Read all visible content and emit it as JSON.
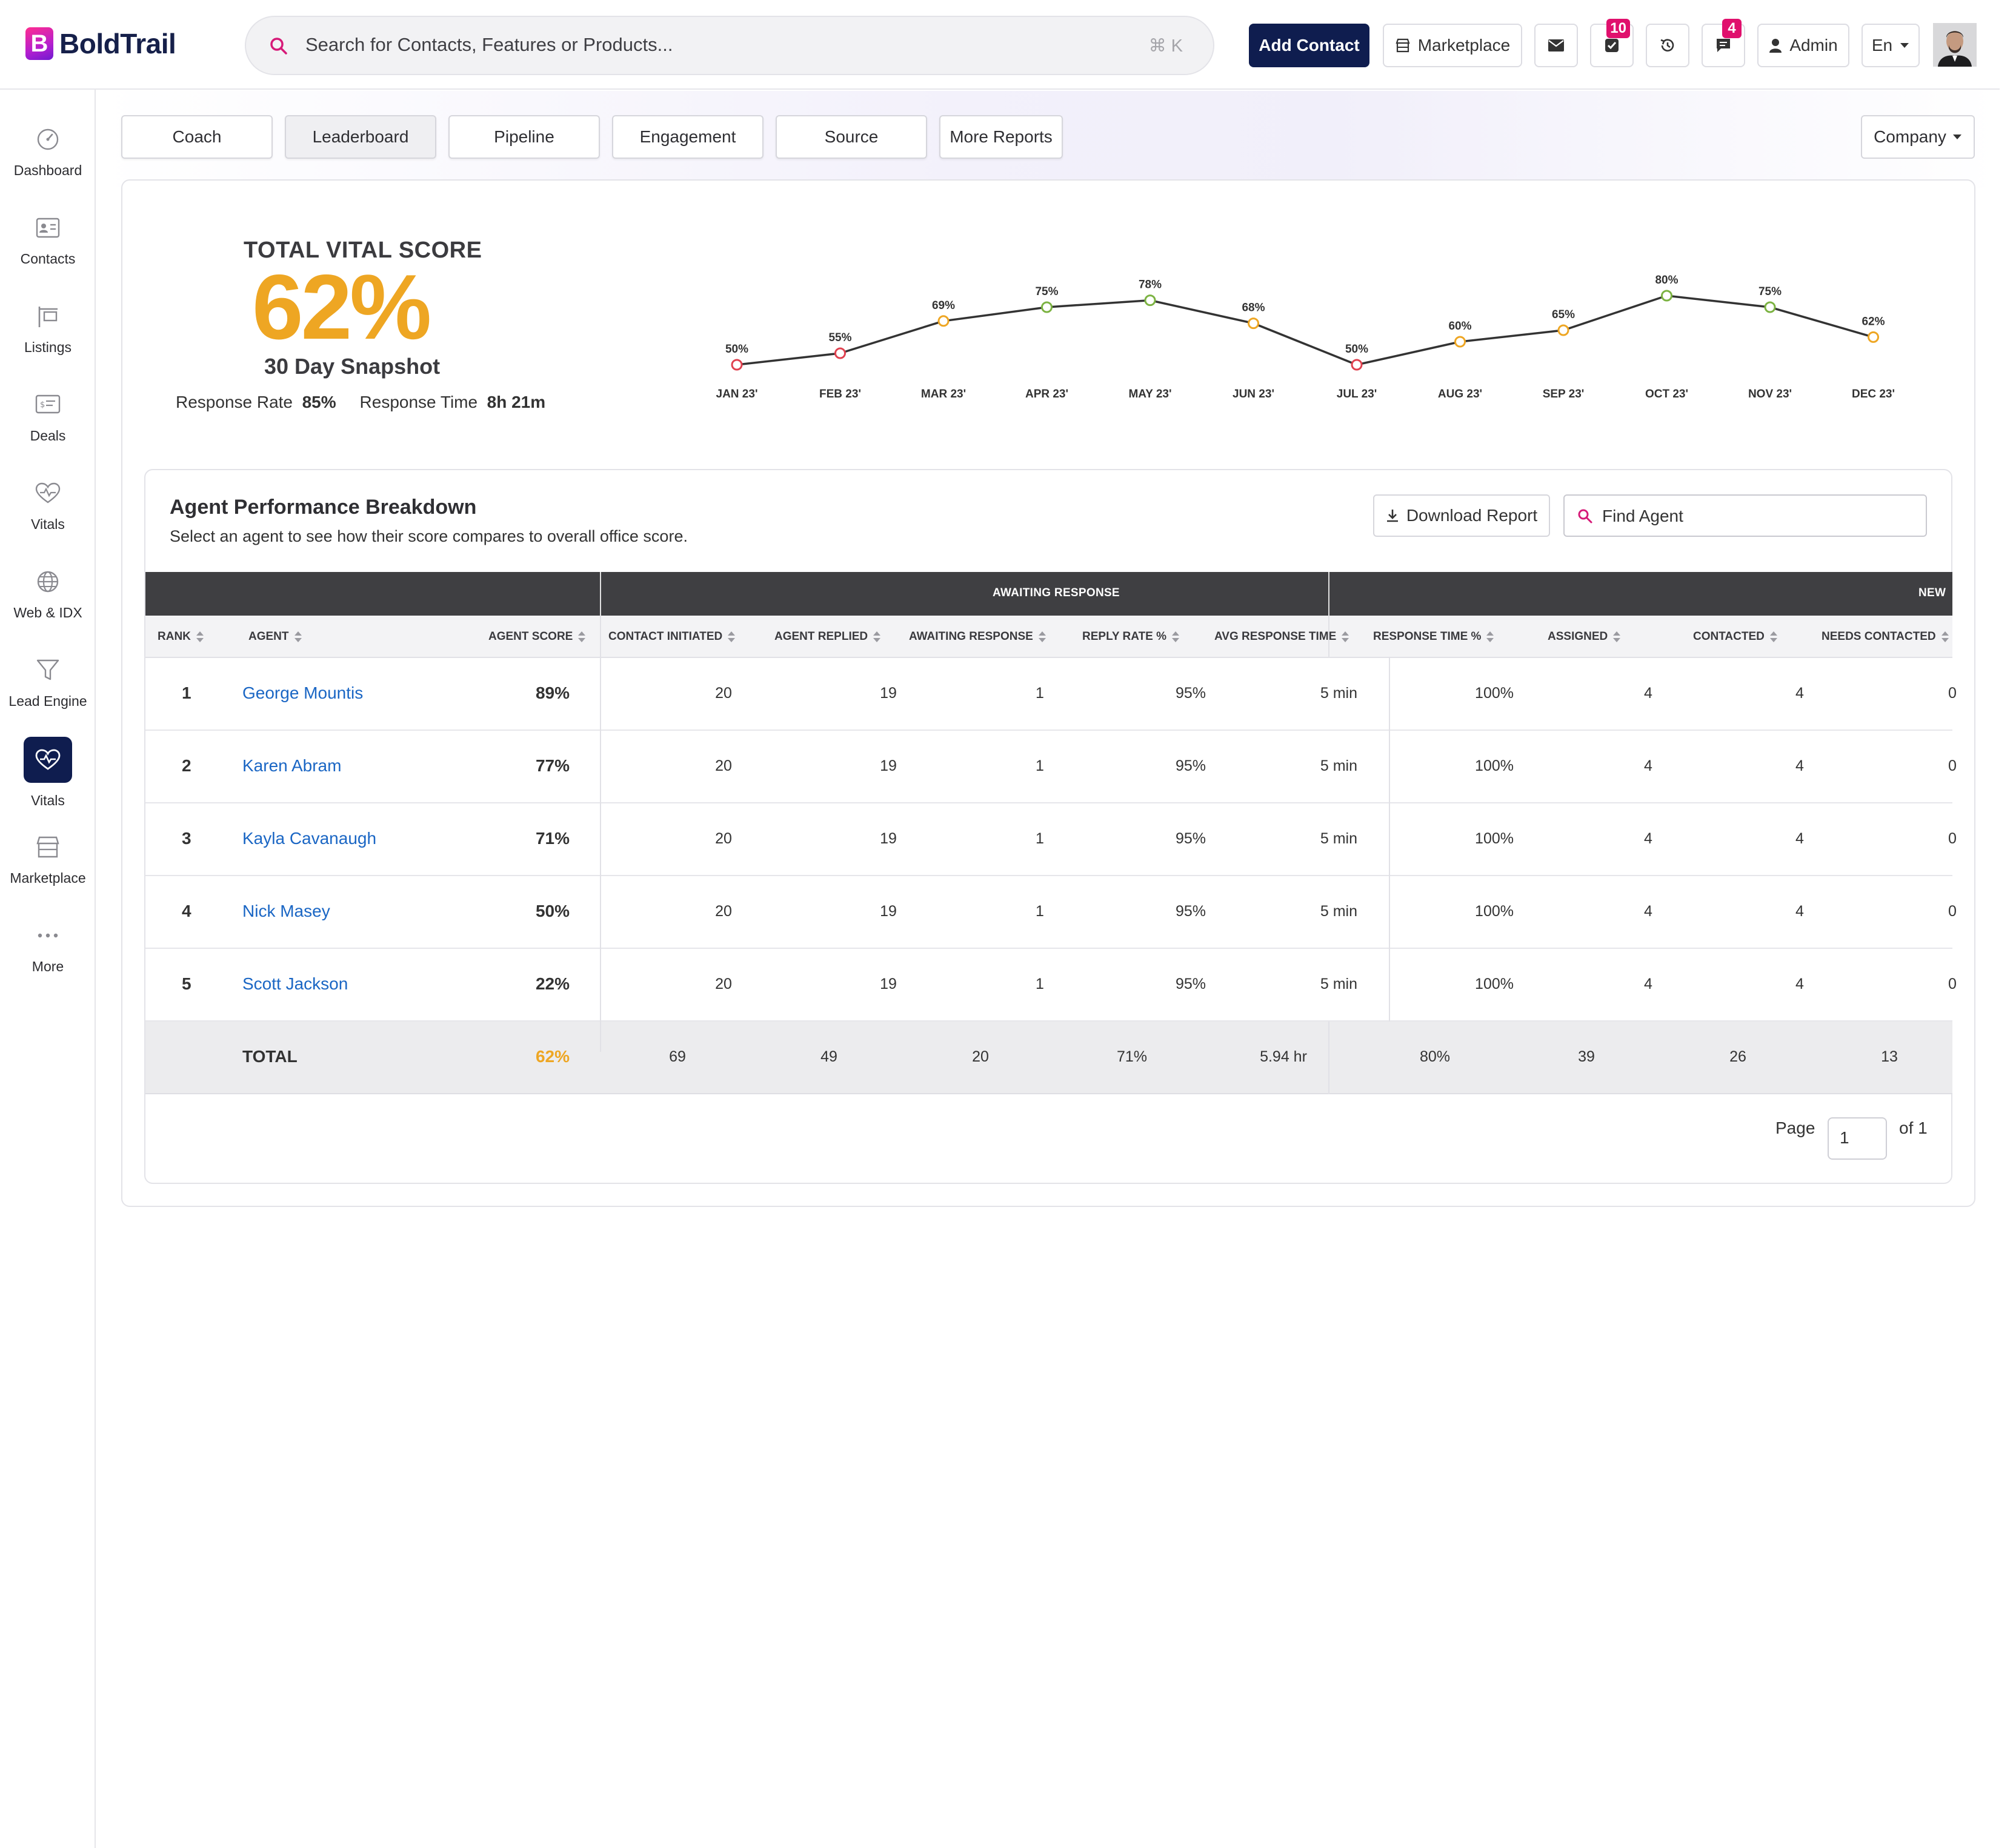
{
  "app": {
    "logo_letter": "B",
    "logo_text": "BoldTrail"
  },
  "search": {
    "placeholder": "Search for Contacts, Features or Products...",
    "shortcut": "⌘ K"
  },
  "header": {
    "add_contact": "Add Contact",
    "marketplace": "Marketplace",
    "tasks_badge": "10",
    "messages_badge": "4",
    "admin": "Admin",
    "language": "En"
  },
  "sidebar": {
    "items": [
      {
        "label": "Dashboard",
        "icon": "gauge-icon"
      },
      {
        "label": "Contacts",
        "icon": "contact-card-icon"
      },
      {
        "label": "Listings",
        "icon": "sign-post-icon"
      },
      {
        "label": "Deals",
        "icon": "deal-card-icon"
      },
      {
        "label": "Vitals",
        "icon": "heartbeat-icon"
      },
      {
        "label": "Web & IDX",
        "icon": "globe-icon"
      },
      {
        "label": "Lead Engine",
        "icon": "funnel-icon"
      },
      {
        "label": "Vitals",
        "icon": "heartbeat-icon",
        "active": true
      },
      {
        "label": "Marketplace",
        "icon": "storefront-icon"
      },
      {
        "label": "More",
        "icon": "ellipsis-icon"
      }
    ]
  },
  "tabs": [
    "Coach",
    "Leaderboard",
    "Pipeline",
    "Engagement",
    "Source",
    "More Reports"
  ],
  "selected_tab": "Leaderboard",
  "scope_select": "Company",
  "vital": {
    "title": "TOTAL VITAL SCORE",
    "score": "62%",
    "period": "30 Day Snapshot",
    "response_rate_label": "Response Rate",
    "response_rate": "85%",
    "response_time_label": "Response Time",
    "response_time": "8h 21m"
  },
  "chart_data": {
    "type": "line",
    "x": [
      "JAN 23'",
      "FEB 23'",
      "MAR 23'",
      "APR 23'",
      "MAY 23'",
      "JUN 23'",
      "JUL 23'",
      "AUG 23'",
      "SEP 23'",
      "OCT 23'",
      "NOV 23'",
      "DEC 23'"
    ],
    "values": [
      50,
      55,
      69,
      75,
      78,
      68,
      50,
      60,
      65,
      80,
      75,
      62
    ],
    "labels": [
      "50%",
      "55%",
      "69%",
      "75%",
      "78%",
      "68%",
      "50%",
      "60%",
      "65%",
      "80%",
      "75%",
      "62%"
    ],
    "point_colors": [
      "#e0414f",
      "#e0414f",
      "#eea623",
      "#7cb342",
      "#7cb342",
      "#eea623",
      "#e0414f",
      "#eea623",
      "#eea623",
      "#7cb342",
      "#7cb342",
      "#eea623"
    ],
    "ylim": [
      40,
      90
    ],
    "grid": false,
    "legend": "none"
  },
  "performance": {
    "title": "Agent Performance Breakdown",
    "subtitle": "Select an agent to see how their score compares to overall office score.",
    "download": "Download Report",
    "find_placeholder": "Find Agent",
    "group_headers": [
      "AWAITING RESPONSE",
      "NEW"
    ],
    "columns": [
      "RANK",
      "AGENT",
      "AGENT SCORE",
      "CONTACT INITIATED",
      "AGENT REPLIED",
      "AWAITING RESPONSE",
      "REPLY RATE %",
      "AVG RESPONSE TIME",
      "RESPONSE TIME %",
      "ASSIGNED",
      "CONTACTED",
      "NEEDS CONTACTED"
    ],
    "rows": [
      {
        "rank": "1",
        "agent": "George Mountis",
        "score": "89%",
        "initiated": "20",
        "replied": "19",
        "awaiting": "1",
        "reply_rate": "95%",
        "avg_time": "5 min",
        "time_pct": "100%",
        "assigned": "4",
        "contacted": "4",
        "needs": "0"
      },
      {
        "rank": "2",
        "agent": "Karen Abram",
        "score": "77%",
        "initiated": "20",
        "replied": "19",
        "awaiting": "1",
        "reply_rate": "95%",
        "avg_time": "5 min",
        "time_pct": "100%",
        "assigned": "4",
        "contacted": "4",
        "needs": "0"
      },
      {
        "rank": "3",
        "agent": "Kayla Cavanaugh",
        "score": "71%",
        "initiated": "20",
        "replied": "19",
        "awaiting": "1",
        "reply_rate": "95%",
        "avg_time": "5 min",
        "time_pct": "100%",
        "assigned": "4",
        "contacted": "4",
        "needs": "0"
      },
      {
        "rank": "4",
        "agent": "Nick Masey",
        "score": "50%",
        "initiated": "20",
        "replied": "19",
        "awaiting": "1",
        "reply_rate": "95%",
        "avg_time": "5 min",
        "time_pct": "100%",
        "assigned": "4",
        "contacted": "4",
        "needs": "0"
      },
      {
        "rank": "5",
        "agent": "Scott Jackson",
        "score": "22%",
        "initiated": "20",
        "replied": "19",
        "awaiting": "1",
        "reply_rate": "95%",
        "avg_time": "5 min",
        "time_pct": "100%",
        "assigned": "4",
        "contacted": "4",
        "needs": "0"
      }
    ],
    "total": {
      "label": "TOTAL",
      "score": "62%",
      "initiated": "69",
      "replied": "49",
      "awaiting": "20",
      "reply_rate": "71%",
      "avg_time": "5.94 hr",
      "time_pct": "80%",
      "assigned": "39",
      "contacted": "26",
      "needs": "13"
    },
    "pager": {
      "label": "Page",
      "current": "1",
      "of": "of 1"
    }
  },
  "colors": {
    "brand_navy": "#0f1d4f",
    "accent_orange": "#eea623",
    "link_blue": "#1a66c4",
    "badge_pink": "#e0106d"
  }
}
